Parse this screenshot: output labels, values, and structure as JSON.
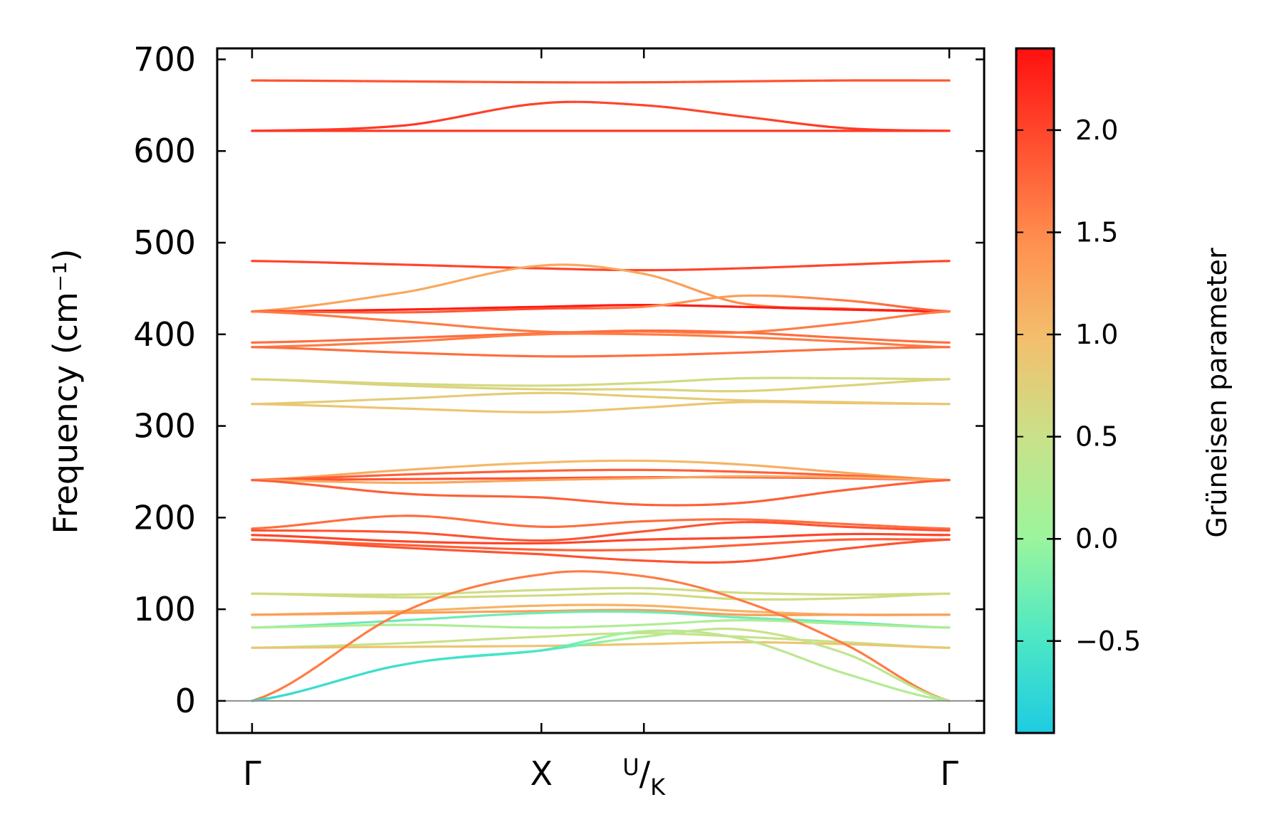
{
  "chart_data": {
    "type": "line",
    "title": "",
    "xlabel": "",
    "ylabel": "Frequency (cm⁻¹)",
    "ylim": [
      -35,
      712
    ],
    "xlim": [
      -0.05,
      1.05
    ],
    "yticks": [
      "0",
      "100",
      "200",
      "300",
      "400",
      "500",
      "600",
      "700"
    ],
    "x_ticks": [
      {
        "label": "Γ",
        "x": 0.0
      },
      {
        "label": "X",
        "x": 0.415
      },
      {
        "label": "U/K",
        "x": 0.562
      },
      {
        "label": "Γ",
        "x": 1.0
      }
    ],
    "colorbar": {
      "label": "Grüneisen parameter",
      "range": [
        -0.95,
        2.4
      ],
      "ticks": [
        "2.0",
        "1.5",
        "1.0",
        "0.5",
        "0.0",
        "−0.5"
      ],
      "colormap": [
        "#1ecbe1",
        "#4fe8c4",
        "#9cf59c",
        "#c8e28a",
        "#f2c06e",
        "#ff9150",
        "#ff5030",
        "#ff1010"
      ]
    },
    "series": [
      {
        "y": [
          677,
          676,
          675,
          675,
          676,
          677,
          677
        ],
        "g": [
          1.9,
          1.9,
          1.9,
          1.9,
          1.9,
          1.9,
          1.9
        ]
      },
      {
        "y": [
          622,
          628,
          652,
          650,
          638,
          625,
          622
        ],
        "g": [
          2.1,
          2.1,
          2.0,
          2.0,
          2.0,
          2.1,
          2.1
        ]
      },
      {
        "y": [
          622,
          622,
          622,
          622,
          622,
          622,
          622
        ],
        "g": [
          2.1,
          2.1,
          2.1,
          2.1,
          2.1,
          2.1,
          2.1
        ]
      },
      {
        "y": [
          480,
          476,
          472,
          470,
          472,
          476,
          480
        ],
        "g": [
          2.0,
          2.0,
          2.0,
          2.0,
          2.0,
          2.0,
          2.0
        ]
      },
      {
        "y": [
          425,
          446,
          475,
          466,
          434,
          428,
          425
        ],
        "g": [
          1.3,
          1.2,
          1.2,
          1.2,
          1.5,
          1.8,
          1.9
        ]
      },
      {
        "y": [
          425,
          427,
          430,
          432,
          430,
          427,
          425
        ],
        "g": [
          2.3,
          2.3,
          2.3,
          2.3,
          2.3,
          2.3,
          2.3
        ]
      },
      {
        "y": [
          425,
          424,
          428,
          430,
          442,
          437,
          425
        ],
        "g": [
          1.8,
          1.8,
          2.0,
          1.5,
          1.3,
          1.6,
          1.9
        ]
      },
      {
        "y": [
          425,
          414,
          403,
          403,
          402,
          412,
          425
        ],
        "g": [
          1.6,
          1.6,
          1.6,
          1.6,
          1.6,
          1.6,
          1.6
        ]
      },
      {
        "y": [
          391,
          396,
          401,
          404,
          402,
          396,
          391
        ],
        "g": [
          1.7,
          1.7,
          1.7,
          1.7,
          1.7,
          1.7,
          1.7
        ]
      },
      {
        "y": [
          386,
          392,
          400,
          400,
          397,
          392,
          386
        ],
        "g": [
          1.6,
          1.6,
          1.6,
          1.6,
          1.6,
          1.6,
          1.6
        ]
      },
      {
        "y": [
          386,
          380,
          376,
          377,
          380,
          384,
          386
        ],
        "g": [
          1.7,
          1.7,
          1.7,
          1.7,
          1.7,
          1.7,
          1.7
        ]
      },
      {
        "y": [
          351,
          346,
          344,
          347,
          352,
          352,
          351
        ],
        "g": [
          0.6,
          0.6,
          0.6,
          0.6,
          0.6,
          0.6,
          0.6
        ]
      },
      {
        "y": [
          351,
          344,
          340,
          340,
          338,
          344,
          351
        ],
        "g": [
          0.7,
          0.7,
          0.7,
          0.7,
          0.7,
          0.7,
          0.7
        ]
      },
      {
        "y": [
          324,
          330,
          336,
          332,
          328,
          326,
          324
        ],
        "g": [
          0.8,
          0.8,
          0.8,
          0.8,
          0.8,
          0.8,
          0.8
        ]
      },
      {
        "y": [
          324,
          319,
          315,
          320,
          326,
          325,
          324
        ],
        "g": [
          0.9,
          0.9,
          0.9,
          0.9,
          0.9,
          0.9,
          0.9
        ]
      },
      {
        "y": [
          241,
          252,
          260,
          262,
          258,
          249,
          241
        ],
        "g": [
          1.3,
          1.1,
          1.0,
          1.0,
          1.1,
          1.2,
          1.3
        ]
      },
      {
        "y": [
          241,
          247,
          251,
          252,
          250,
          246,
          241
        ],
        "g": [
          1.8,
          1.8,
          1.8,
          1.8,
          1.8,
          1.8,
          1.8
        ]
      },
      {
        "y": [
          241,
          242,
          243,
          244,
          244,
          243,
          241
        ],
        "g": [
          1.9,
          1.9,
          1.9,
          1.9,
          1.9,
          1.9,
          1.9
        ]
      },
      {
        "y": [
          241,
          238,
          241,
          243,
          245,
          244,
          241
        ],
        "g": [
          1.2,
          1.2,
          1.3,
          1.3,
          1.2,
          1.2,
          1.2
        ]
      },
      {
        "y": [
          241,
          226,
          222,
          214,
          216,
          230,
          241
        ],
        "g": [
          1.8,
          1.8,
          1.8,
          1.8,
          1.8,
          1.8,
          1.8
        ]
      },
      {
        "y": [
          188,
          202,
          190,
          196,
          198,
          193,
          188
        ],
        "g": [
          1.7,
          1.7,
          1.7,
          1.7,
          1.7,
          1.7,
          1.7
        ]
      },
      {
        "y": [
          186,
          184,
          175,
          185,
          195,
          190,
          186
        ],
        "g": [
          1.9,
          1.9,
          1.9,
          1.9,
          1.9,
          1.9,
          1.9
        ]
      },
      {
        "y": [
          181,
          174,
          172,
          176,
          178,
          182,
          181
        ],
        "g": [
          2.0,
          2.0,
          2.0,
          2.0,
          2.0,
          2.0,
          2.0
        ]
      },
      {
        "y": [
          176,
          170,
          165,
          165,
          170,
          176,
          176
        ],
        "g": [
          1.8,
          1.8,
          1.8,
          1.8,
          1.8,
          1.8,
          1.8
        ]
      },
      {
        "y": [
          176,
          167,
          160,
          153,
          152,
          166,
          176
        ],
        "g": [
          1.9,
          1.9,
          1.9,
          1.9,
          1.9,
          1.9,
          1.9
        ]
      },
      {
        "y": [
          117,
          116,
          121,
          123,
          118,
          116,
          117
        ],
        "g": [
          0.55,
          0.55,
          0.55,
          0.55,
          0.55,
          0.55,
          0.55
        ]
      },
      {
        "y": [
          117,
          113,
          115,
          117,
          111,
          112,
          117
        ],
        "g": [
          0.6,
          0.6,
          0.6,
          0.6,
          0.6,
          0.6,
          0.6
        ]
      },
      {
        "y": [
          94,
          98,
          104,
          104,
          98,
          94,
          94
        ],
        "g": [
          1.1,
          1.1,
          1.1,
          1.1,
          1.1,
          1.1,
          1.1
        ]
      },
      {
        "y": [
          94,
          96,
          98,
          99,
          94,
          94,
          94
        ],
        "g": [
          1.3,
          1.3,
          1.3,
          1.3,
          1.3,
          1.3,
          1.3
        ]
      },
      {
        "y": [
          80,
          88,
          96,
          97,
          91,
          86,
          80
        ],
        "g": [
          -0.3,
          -0.3,
          -0.3,
          -0.3,
          -0.3,
          -0.3,
          -0.3
        ]
      },
      {
        "y": [
          80,
          83,
          80,
          83,
          88,
          84,
          80
        ],
        "g": [
          0.2,
          0.2,
          0.2,
          0.2,
          0.2,
          0.2,
          0.2
        ]
      },
      {
        "y": [
          58,
          63,
          70,
          74,
          70,
          64,
          58
        ],
        "g": [
          0.5,
          0.5,
          0.5,
          0.5,
          0.5,
          0.5,
          0.5
        ]
      },
      {
        "y": [
          58,
          59,
          60,
          62,
          64,
          62,
          58
        ],
        "g": [
          0.9,
          0.9,
          0.9,
          0.9,
          0.9,
          0.9,
          0.9
        ]
      },
      {
        "y": [
          0,
          98,
          138,
          136,
          110,
          62,
          0
        ],
        "g": [
          1.6,
          1.6,
          1.6,
          1.6,
          1.6,
          1.6,
          1.6
        ]
      },
      {
        "y": [
          0,
          40,
          55,
          70,
          78,
          52,
          0
        ],
        "g": [
          -0.7,
          -0.6,
          -0.5,
          0.2,
          0.5,
          0.4,
          0.3
        ]
      },
      {
        "y": [
          0,
          40,
          55,
          76,
          68,
          30,
          0
        ],
        "g": [
          -0.7,
          -0.6,
          -0.5,
          0.3,
          0.4,
          0.3,
          0.2
        ]
      },
      {
        "y": [
          0,
          0,
          0,
          0,
          0,
          0,
          0
        ],
        "g": [
          2.0,
          2.0,
          2.0,
          2.0,
          2.0,
          2.0,
          2.0
        ]
      }
    ],
    "series_x": [
      0.0,
      0.22,
      0.415,
      0.562,
      0.7,
      0.85,
      1.0
    ]
  }
}
